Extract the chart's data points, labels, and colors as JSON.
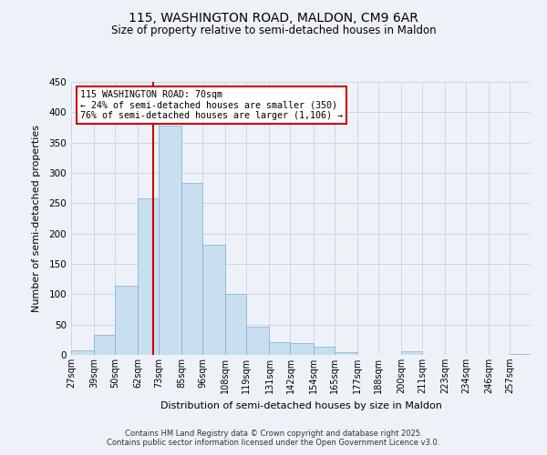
{
  "title": "115, WASHINGTON ROAD, MALDON, CM9 6AR",
  "subtitle": "Size of property relative to semi-detached houses in Maldon",
  "xlabel": "Distribution of semi-detached houses by size in Maldon",
  "ylabel": "Number of semi-detached properties",
  "footer_lines": [
    "Contains HM Land Registry data © Crown copyright and database right 2025.",
    "Contains public sector information licensed under the Open Government Licence v3.0."
  ],
  "bin_labels": [
    "27sqm",
    "39sqm",
    "50sqm",
    "62sqm",
    "73sqm",
    "85sqm",
    "96sqm",
    "108sqm",
    "119sqm",
    "131sqm",
    "142sqm",
    "154sqm",
    "165sqm",
    "177sqm",
    "188sqm",
    "200sqm",
    "211sqm",
    "223sqm",
    "234sqm",
    "246sqm",
    "257sqm"
  ],
  "bin_edges": [
    27,
    39,
    50,
    62,
    73,
    85,
    96,
    108,
    119,
    131,
    142,
    154,
    165,
    177,
    188,
    200,
    211,
    223,
    234,
    246,
    257
  ],
  "bar_heights": [
    7,
    33,
    114,
    258,
    378,
    283,
    181,
    100,
    47,
    21,
    20,
    14,
    4,
    0,
    0,
    6,
    0,
    0,
    0,
    0,
    1
  ],
  "bar_color": "#c8dff0",
  "bar_edge_color": "#7aafd0",
  "grid_color": "#c8d8e8",
  "background_color": "#eef2f8",
  "vline_x": 70,
  "vline_color": "#cc0000",
  "annotation_text": "115 WASHINGTON ROAD: 70sqm\n← 24% of semi-detached houses are smaller (350)\n76% of semi-detached houses are larger (1,106) →",
  "annotation_box_color": "#ffffff",
  "annotation_box_edge": "#cc0000",
  "ylim": [
    0,
    450
  ],
  "yticks": [
    0,
    50,
    100,
    150,
    200,
    250,
    300,
    350,
    400,
    450
  ]
}
